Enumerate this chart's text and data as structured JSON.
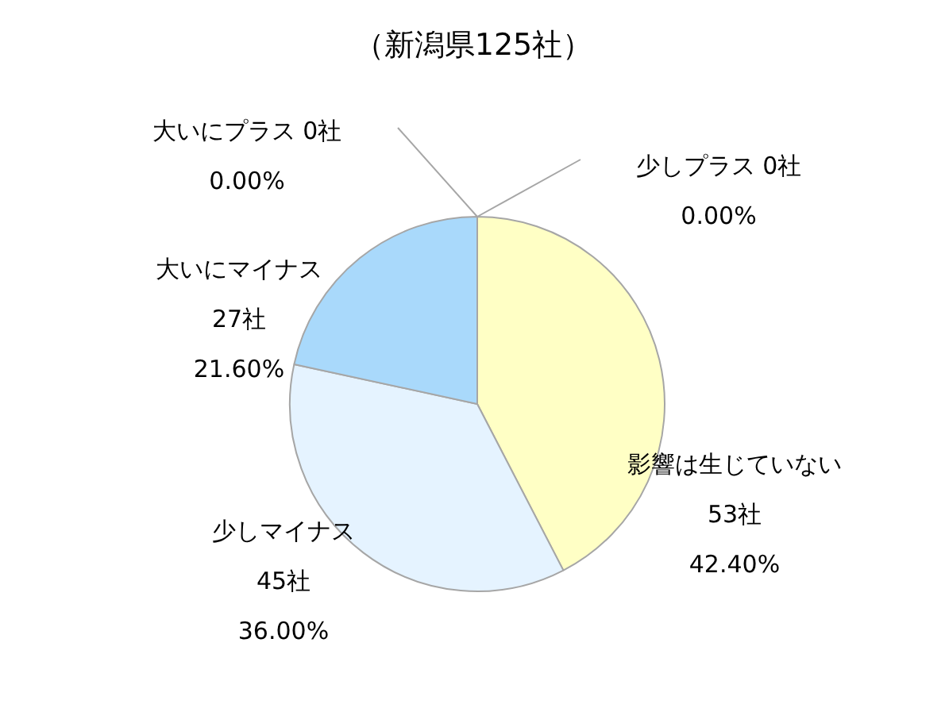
{
  "chart_data": {
    "type": "pie",
    "title": "（新潟県125社）",
    "categories": [
      "大いにプラス",
      "少しプラス",
      "影響は生じていない",
      "少しマイナス",
      "大いにマイナス"
    ],
    "values": [
      0.0,
      0.0,
      42.4,
      36.0,
      21.6
    ],
    "colors": [
      "#f4b183",
      "#ffe699",
      "#ffffc5",
      "#e5f3ff",
      "#a9d9fb"
    ],
    "value_labels": [
      "0社\n0.00%",
      "0社\n0.00%",
      "53社\n42.40%",
      "45社\n36.00%",
      "27社\n21.60%"
    ]
  }
}
